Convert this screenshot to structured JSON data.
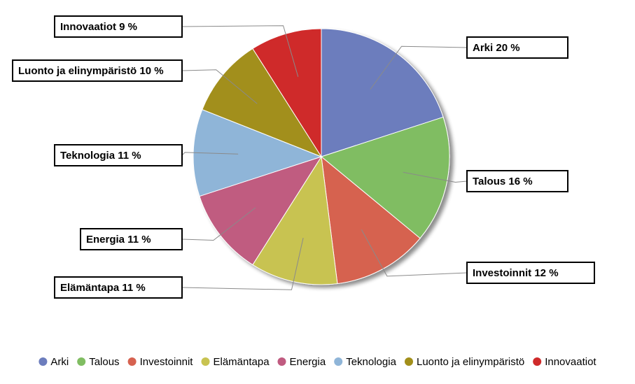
{
  "chart_data": {
    "type": "pie",
    "categories": [
      "Arki",
      "Talous",
      "Investoinnit",
      "Elämäntapa",
      "Energia",
      "Teknologia",
      "Luonto ja elinympäristö",
      "Innovaatiot"
    ],
    "values": [
      20,
      16,
      12,
      11,
      11,
      11,
      10,
      9
    ],
    "data_labels": [
      "Arki 20 %",
      "Talous 16 %",
      "Investoinnit 12 %",
      "Elämäntapa 11 %",
      "Energia 11 %",
      "Teknologia 11 %",
      "Luonto ja elinympäristö 10 %",
      "Innovaatiot 9 %"
    ],
    "colors": [
      "#6c7dbd",
      "#80bd62",
      "#d66250",
      "#c8c351",
      "#c05b80",
      "#8fb5d8",
      "#a28f1a",
      "#cf2a2a"
    ],
    "legend_position": "bottom",
    "title": ""
  }
}
